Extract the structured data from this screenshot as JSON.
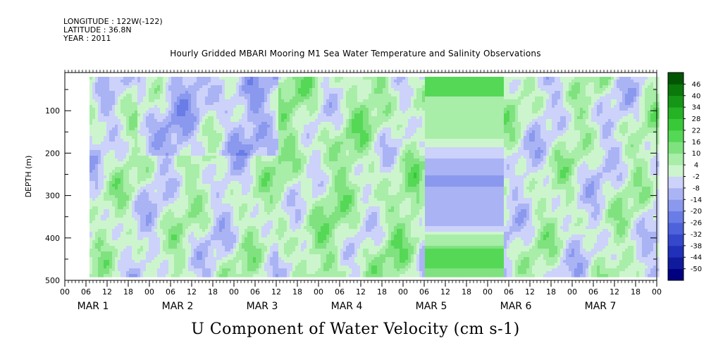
{
  "header": {
    "longitude": "LONGITUDE : 122W(-122)",
    "latitude": "LATITUDE : 36.8N",
    "year": "YEAR : 2011"
  },
  "chart_data": {
    "type": "heatmap",
    "title": "Hourly Gridded MBARI Mooring M1 Sea Water Temperature and Salinity Observations",
    "xlabel": "U Component of Water Velocity (cm s-1)",
    "ylabel": "DEPTH (m)",
    "y_range": [
      500,
      10
    ],
    "y_reversed": true,
    "y_ticks": [
      100,
      200,
      300,
      400,
      500
    ],
    "x_hour_ticks": [
      "00",
      "06",
      "12",
      "18",
      "00",
      "06",
      "12",
      "18",
      "00",
      "06",
      "12",
      "18",
      "00",
      "06",
      "12",
      "18",
      "00",
      "06",
      "12",
      "18",
      "00",
      "06",
      "12",
      "18",
      "00",
      "06",
      "12",
      "18",
      "00"
    ],
    "x_day_labels": [
      "MAR 1",
      "MAR 2",
      "MAR 3",
      "MAR 4",
      "MAR 5",
      "MAR 6",
      "MAR 7"
    ],
    "x_range_hours": [
      0,
      168
    ],
    "data_coverage": {
      "start_hour": 7,
      "end_hour": 168,
      "depth_top": 20,
      "depth_bottom": 490
    },
    "colorbar": {
      "levels": [
        -50,
        -44,
        -38,
        -32,
        -26,
        -20,
        -14,
        -8,
        -2,
        4,
        10,
        16,
        22,
        28,
        34,
        40,
        46
      ],
      "labels": [
        "46",
        "40",
        "34",
        "28",
        "22",
        "16",
        "10",
        "4",
        "-2",
        "-8",
        "-14",
        "-20",
        "-26",
        "-32",
        "-38",
        "-44",
        "-50"
      ],
      "colors": [
        "#000080",
        "#101a9c",
        "#2030b8",
        "#3548cc",
        "#4e62dc",
        "#6a7ce6",
        "#8a98ee",
        "#aab4f4",
        "#ccd2fa",
        "#cdf5cd",
        "#a8eda8",
        "#7fe27f",
        "#55d855",
        "#38c838",
        "#25b225",
        "#169616",
        "#0a780a",
        "#035503"
      ]
    },
    "grid": false,
    "legend": "colorbar-right"
  }
}
